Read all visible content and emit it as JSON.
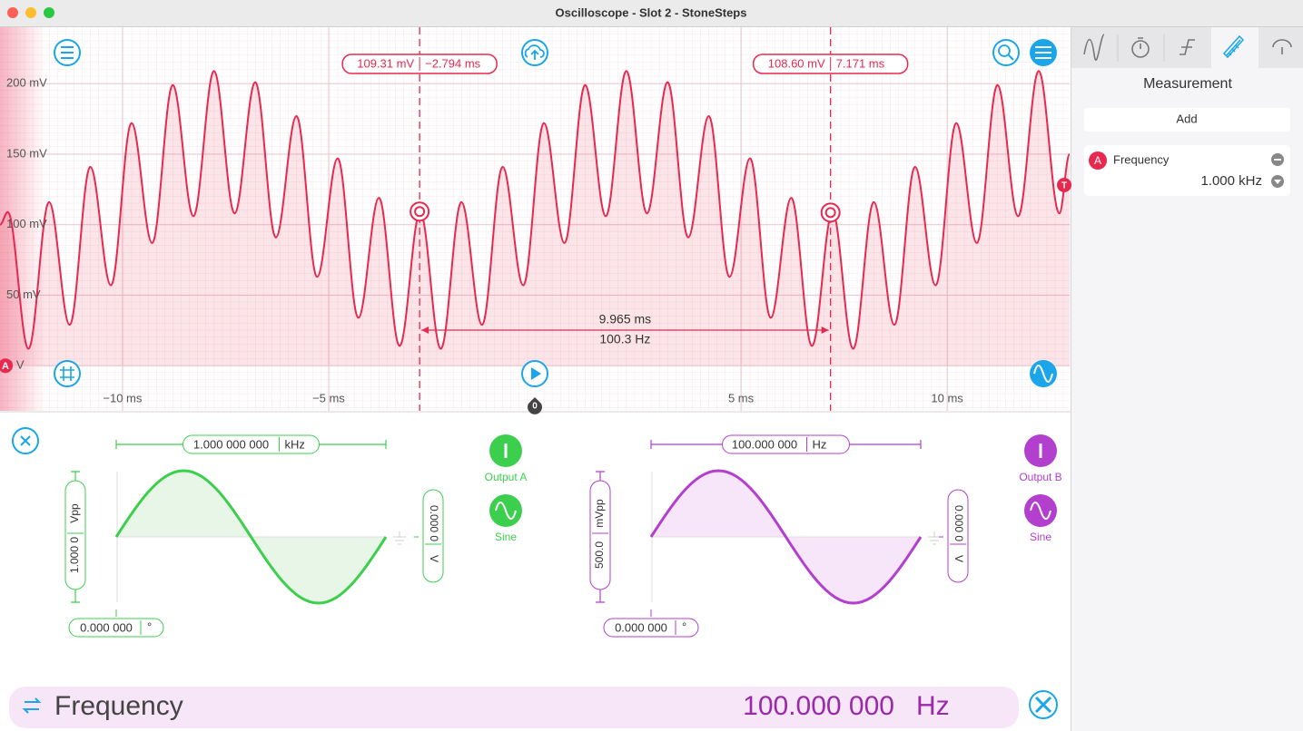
{
  "window": {
    "title": "Oscilloscope - Slot 2 - StoneSteps"
  },
  "scope": {
    "type": "line",
    "xlim": [
      -12.97,
      12.97
    ],
    "ylim": [
      -32,
      240
    ],
    "yticks": [
      {
        "value": 200,
        "label": "200 mV"
      },
      {
        "value": 150,
        "label": "150 mV"
      },
      {
        "value": 100,
        "label": "100 mV"
      },
      {
        "value": 50,
        "label": "50 mV"
      },
      {
        "value": 0,
        "label": "0 V"
      }
    ],
    "xticks": [
      {
        "value": -10,
        "label": "−10 ms"
      },
      {
        "value": -5,
        "label": "−5 ms"
      },
      {
        "value": 5,
        "label": "5 ms"
      },
      {
        "value": 10,
        "label": "10 ms"
      }
    ],
    "series": [
      {
        "name": "A",
        "color": "#e8284e",
        "x": [
          -12.97,
          -12.78,
          -12.28,
          -11.78,
          -11.28,
          -10.78,
          -10.28,
          -9.78,
          -9.28,
          -8.78,
          -8.28,
          -7.78,
          -7.28,
          -6.78,
          -6.28,
          -5.78,
          -5.28,
          -4.78,
          -4.28,
          -3.78,
          -3.28,
          -2.78,
          -2.28,
          -1.78,
          -1.28,
          -0.78,
          -0.28,
          0.22,
          0.72,
          1.22,
          1.72,
          2.22,
          2.72,
          3.22,
          3.72,
          4.22,
          4.72,
          5.22,
          5.72,
          6.22,
          6.72,
          7.22,
          7.72,
          8.22,
          8.72,
          9.22,
          9.72,
          10.22,
          10.72,
          11.22,
          11.72,
          12.22,
          12.72,
          12.97
        ],
        "values": [
          100,
          109,
          12,
          116,
          29,
          141,
          57,
          172,
          87,
          199,
          106,
          209,
          108,
          201,
          91,
          177,
          63,
          147,
          34,
          119,
          14,
          109,
          12,
          116,
          29,
          141,
          57,
          172,
          87,
          199,
          106,
          209,
          108,
          201,
          91,
          177,
          63,
          147,
          34,
          119,
          14,
          109,
          12,
          116,
          29,
          141,
          57,
          172,
          87,
          199,
          106,
          209,
          108,
          150
        ]
      }
    ],
    "cursors": [
      {
        "x": -2.794,
        "value": 109.31,
        "value_label": "109.31 mV",
        "x_label": "−2.794 ms"
      },
      {
        "x": 7.171,
        "value": 108.6,
        "value_label": "108.60 mV",
        "x_label": "7.171 ms"
      }
    ],
    "delta": {
      "time": "9.965 ms",
      "frequency": "100.3 Hz"
    },
    "trigger_label": "T",
    "zero_marker": "0"
  },
  "measurement_panel": {
    "title": "Measurement",
    "add_button": "Add",
    "items": [
      {
        "channel": "A",
        "name": "Frequency",
        "value": "1.000 kHz"
      }
    ]
  },
  "generator": {
    "outputs": [
      {
        "frequency": "1.000 000 000",
        "frequency_unit": "kHz",
        "amplitude": "1.000 0",
        "amplitude_unit": "Vpp",
        "offset": "0.000 0",
        "offset_unit": "V",
        "phase": "0.000 000",
        "phase_unit": "°",
        "label": "Output A",
        "waveform": "Sine",
        "color": "#3ccf4e",
        "fill": "#e8f6e8"
      },
      {
        "frequency": "100.000 000",
        "frequency_unit": "Hz",
        "amplitude": "500.0",
        "amplitude_unit": "mVpp",
        "offset": "0.000 0",
        "offset_unit": "V",
        "phase": "0.000 000",
        "phase_unit": "°",
        "label": "Output B",
        "waveform": "Sine",
        "color": "#b23fcd",
        "fill": "#f7e5f9"
      }
    ]
  },
  "bottom_bar": {
    "parameter": "Frequency",
    "value": "100.000 000",
    "unit": "Hz"
  }
}
